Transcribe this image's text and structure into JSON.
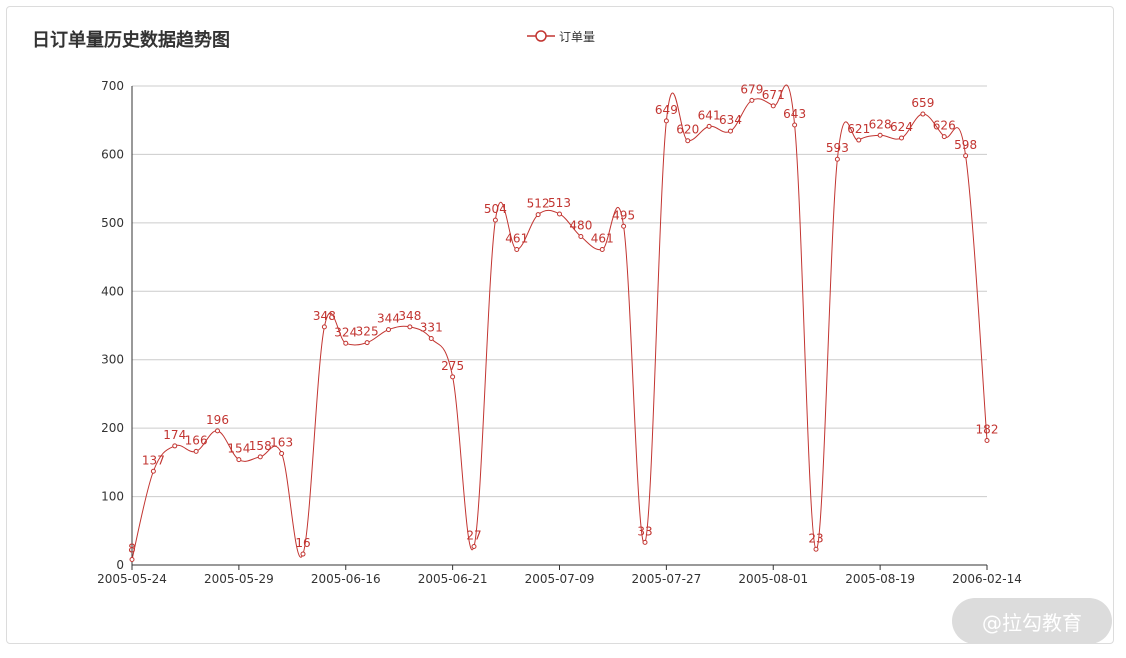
{
  "watermark": "@拉勾教育",
  "chart_data": {
    "type": "line",
    "title": "日订单量历史数据趋势图",
    "xlabel": "",
    "ylabel": "",
    "ylim": [
      0,
      700
    ],
    "yticks": [
      0,
      100,
      200,
      300,
      400,
      500,
      600,
      700
    ],
    "xtick_labels": [
      "2005-05-24",
      "2005-05-29",
      "2005-06-16",
      "2005-06-21",
      "2005-07-09",
      "2005-07-27",
      "2005-08-01",
      "2005-08-19",
      "2006-02-14"
    ],
    "grid": true,
    "legend_position": "top-center",
    "color": "#c23531",
    "series": [
      {
        "name": "订单量",
        "values": [
          8,
          137,
          174,
          166,
          196,
          154,
          158,
          163,
          16,
          348,
          324,
          325,
          344,
          348,
          331,
          275,
          27,
          504,
          461,
          512,
          513,
          480,
          461,
          495,
          33,
          649,
          620,
          641,
          634,
          679,
          671,
          643,
          23,
          593,
          621,
          628,
          624,
          659,
          626,
          598,
          182
        ]
      }
    ]
  }
}
